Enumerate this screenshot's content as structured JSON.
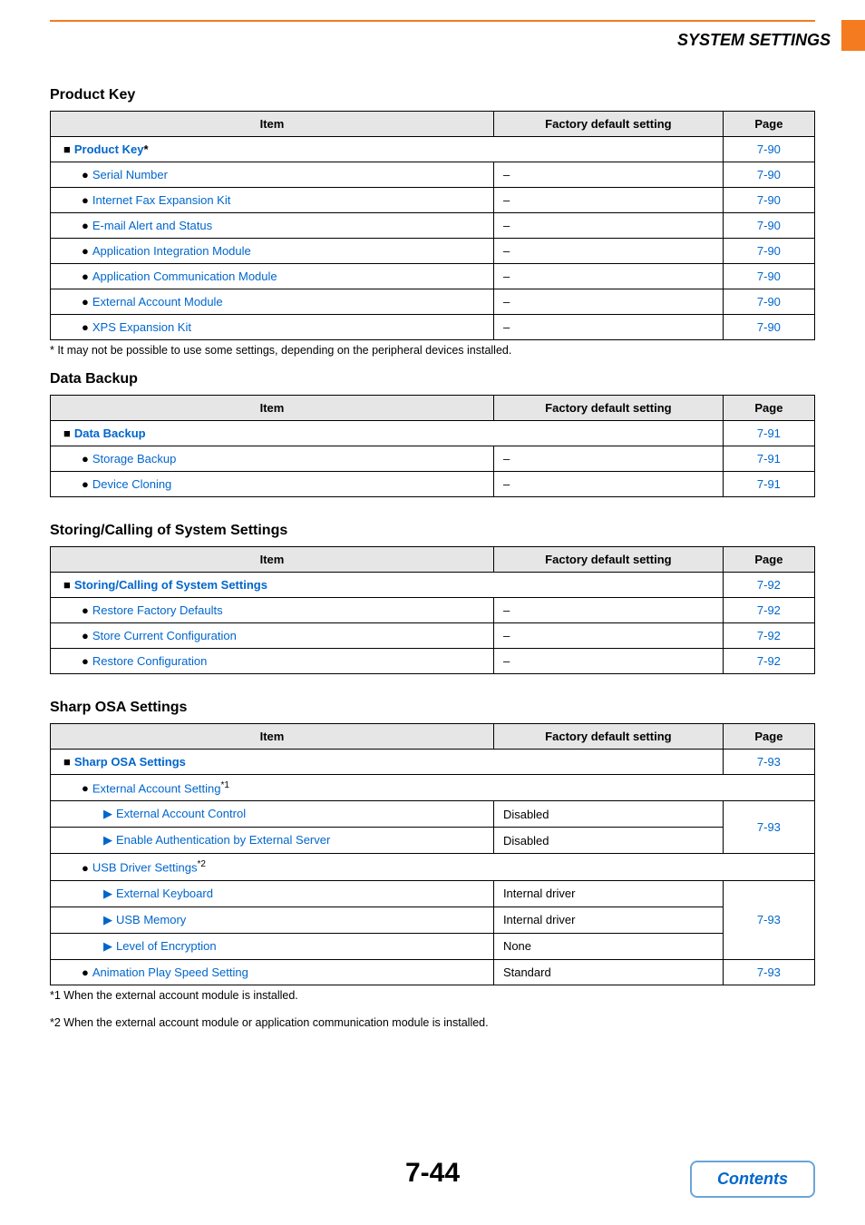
{
  "header": {
    "title": "SYSTEM SETTINGS"
  },
  "colors": {
    "accent_orange": "#f47b20",
    "link_blue": "#0066cc",
    "header_bg": "#e6e6e6",
    "border": "#000000",
    "button_border": "#6ba4d9"
  },
  "columns": {
    "item": "Item",
    "fds": "Factory default setting",
    "page": "Page"
  },
  "sections": [
    {
      "heading": "Product Key",
      "rows": [
        {
          "type": "heading",
          "label": "Product Key",
          "suffix": "*",
          "page": "7-90"
        },
        {
          "type": "bullet",
          "label": "Serial Number",
          "fds": "–",
          "page": "7-90"
        },
        {
          "type": "bullet",
          "label": "Internet Fax Expansion Kit",
          "fds": "–",
          "page": "7-90"
        },
        {
          "type": "bullet",
          "label": "E-mail Alert and Status",
          "fds": "–",
          "page": "7-90"
        },
        {
          "type": "bullet",
          "label": "Application Integration Module",
          "fds": "–",
          "page": "7-90"
        },
        {
          "type": "bullet",
          "label": "Application Communication Module",
          "fds": "–",
          "page": "7-90"
        },
        {
          "type": "bullet",
          "label": "External Account Module",
          "fds": "–",
          "page": "7-90"
        },
        {
          "type": "bullet",
          "label": "XPS Expansion Kit",
          "fds": "–",
          "page": "7-90"
        }
      ],
      "footnotes": [
        "*  It may not be possible to use some settings, depending on the peripheral devices installed."
      ]
    },
    {
      "heading": "Data Backup",
      "rows": [
        {
          "type": "heading",
          "label": "Data Backup",
          "page": "7-91"
        },
        {
          "type": "bullet",
          "label": "Storage Backup",
          "fds": "–",
          "page": "7-91"
        },
        {
          "type": "bullet",
          "label": "Device Cloning",
          "fds": "–",
          "page": "7-91"
        }
      ],
      "footnotes": []
    },
    {
      "heading": "Storing/Calling of System Settings",
      "rows": [
        {
          "type": "heading",
          "label": "Storing/Calling of System Settings",
          "page": "7-92"
        },
        {
          "type": "bullet",
          "label": "Restore Factory Defaults",
          "fds": "–",
          "page": "7-92"
        },
        {
          "type": "bullet",
          "label": "Store Current Configuration",
          "fds": "–",
          "page": "7-92"
        },
        {
          "type": "bullet",
          "label": "Restore Configuration",
          "fds": "–",
          "page": "7-92"
        }
      ],
      "footnotes": []
    },
    {
      "heading": "Sharp OSA Settings",
      "rows": [
        {
          "type": "heading",
          "label": "Sharp OSA Settings",
          "page": "7-93"
        },
        {
          "type": "bullet",
          "label": "External Account Setting",
          "sup": "*1",
          "span_all": true
        },
        {
          "type": "tri",
          "label": "External Account Control",
          "fds": "Disabled",
          "page": "7-93",
          "page_rowspan": 2
        },
        {
          "type": "tri",
          "label": "Enable Authentication by External Server",
          "fds": "Disabled"
        },
        {
          "type": "bullet",
          "label": "USB Driver Settings",
          "sup": "*2",
          "span_all": true
        },
        {
          "type": "tri",
          "label": "External Keyboard",
          "fds": "Internal driver",
          "page": "7-93",
          "page_rowspan": 3
        },
        {
          "type": "tri",
          "label": "USB Memory",
          "fds": "Internal driver"
        },
        {
          "type": "tri",
          "label": "Level of Encryption",
          "fds": "None"
        },
        {
          "type": "bullet",
          "label": "Animation Play Speed Setting",
          "fds": "Standard",
          "page": "7-93"
        }
      ],
      "footnotes": [
        "*1  When the external account module is installed.",
        "*2  When the external account module or application communication module is installed."
      ]
    }
  ],
  "footer": {
    "page_number": "7-44",
    "contents_label": "Contents"
  }
}
